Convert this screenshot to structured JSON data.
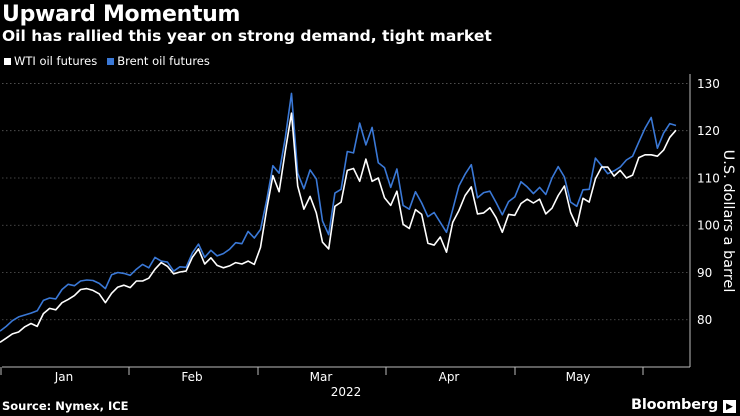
{
  "header": {
    "title": "Upward Momentum",
    "subtitle": "Oil has rallied this year on strong demand, tight market"
  },
  "footer": {
    "source": "Source: Nymex, ICE",
    "brand": "Bloomberg"
  },
  "chart_data": {
    "type": "line",
    "ylabel": "U.S. dollars a barrel",
    "ylim": [
      70,
      132
    ],
    "y_ticks": [
      80,
      90,
      100,
      110,
      120,
      130
    ],
    "x_tick_labels": [
      "Jan",
      "Feb",
      "Mar",
      "Apr",
      "May"
    ],
    "x_year_label": "2022",
    "grid": true,
    "legend_position": "top-left",
    "colors": {
      "background": "#000000",
      "brent": "#3a78d6",
      "wti": "#ffffff"
    },
    "series": [
      {
        "name": "WTI oil futures",
        "color": "#ffffff",
        "values": [
          75.2,
          76.1,
          77.0,
          77.4,
          78.5,
          79.2,
          78.6,
          81.3,
          82.4,
          82.1,
          83.6,
          84.3,
          85.1,
          86.4,
          86.6,
          86.2,
          85.5,
          83.6,
          85.6,
          86.9,
          87.3,
          86.8,
          88.2,
          88.2,
          88.8,
          90.7,
          92.1,
          91.3,
          89.7,
          90.1,
          90.3,
          93.2,
          95.0,
          91.8,
          93.1,
          91.5,
          91.0,
          91.4,
          92.1,
          91.8,
          92.4,
          91.7,
          95.3,
          103.4,
          110.5,
          107.1,
          115.7,
          123.7,
          108.3,
          103.4,
          106.1,
          102.6,
          96.4,
          95.0,
          104.0,
          104.9,
          111.6,
          112.0,
          109.3,
          114.0,
          109.3,
          110.0,
          105.8,
          104.2,
          107.2,
          100.2,
          99.3,
          103.3,
          102.3,
          96.2,
          95.8,
          97.5,
          94.3,
          100.6,
          103.1,
          106.3,
          108.1,
          102.4,
          102.6,
          103.7,
          101.6,
          98.5,
          102.3,
          102.1,
          104.6,
          105.5,
          104.7,
          105.5,
          102.4,
          103.6,
          106.3,
          108.3,
          102.7,
          99.8,
          105.7,
          104.9,
          109.8,
          112.3,
          112.3,
          110.4,
          111.6,
          110.0,
          110.6,
          114.3,
          114.9,
          114.9,
          114.6,
          115.9,
          118.6,
          120.1
        ]
      },
      {
        "name": "Brent oil futures",
        "color": "#3a78d6",
        "values": [
          77.6,
          78.6,
          79.8,
          80.6,
          81.0,
          81.4,
          81.9,
          84.1,
          84.6,
          84.4,
          86.4,
          87.5,
          87.2,
          88.2,
          88.4,
          88.3,
          87.7,
          86.6,
          89.5,
          90.0,
          89.8,
          89.4,
          90.7,
          91.7,
          91.0,
          93.2,
          92.4,
          92.2,
          90.3,
          91.2,
          91.1,
          94.1,
          96.0,
          93.2,
          94.7,
          93.5,
          94.0,
          94.9,
          96.3,
          96.1,
          98.7,
          97.3,
          99.1,
          105.3,
          112.6,
          111.0,
          118.5,
          127.9,
          111.0,
          107.7,
          111.7,
          109.8,
          100.9,
          98.0,
          106.8,
          107.6,
          115.6,
          115.3,
          121.6,
          117.0,
          120.7,
          113.2,
          112.2,
          108.0,
          111.9,
          104.2,
          103.4,
          107.1,
          104.7,
          101.8,
          102.7,
          100.6,
          98.5,
          103.3,
          108.3,
          110.8,
          112.8,
          105.8,
          106.9,
          107.2,
          104.8,
          102.2,
          105.0,
          106.0,
          109.2,
          108.1,
          106.7,
          108.0,
          106.5,
          110.0,
          112.4,
          110.2,
          104.9,
          104.0,
          107.5,
          107.6,
          114.2,
          112.6,
          110.9,
          111.5,
          112.3,
          113.8,
          114.6,
          117.6,
          120.5,
          122.8,
          116.3,
          119.5,
          121.5,
          121.1
        ]
      }
    ]
  }
}
